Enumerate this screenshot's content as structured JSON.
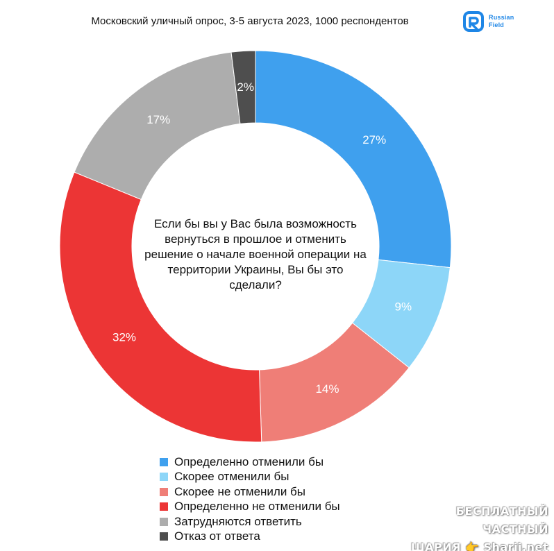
{
  "header": {
    "title": "Московский уличный опрос, 3-5 августа 2023, 1000 респондентов"
  },
  "logo": {
    "text_line1": "Russian",
    "text_line2": "Field",
    "color": "#1e86e6"
  },
  "chart_data": {
    "type": "pie",
    "center_text": "Если бы вы у Вас была возможность вернуться в прошлое и отменить решение о начале военной операции на территории Украины, Вы бы это сделали?",
    "categories": [
      "Определенно отменили бы",
      "Скорее отменили бы",
      "Скорее не отменили бы",
      "Определенно не отменили бы",
      "Затрудняются ответить",
      "Отказ от ответа"
    ],
    "values": [
      27,
      9,
      14,
      32,
      17,
      2
    ],
    "labels": [
      "27%",
      "9%",
      "14%",
      "32%",
      "17%",
      "2%"
    ],
    "colors": [
      "#3fa0ee",
      "#8dd6f8",
      "#ef7e77",
      "#ec3535",
      "#adadad",
      "#4e4e4e"
    ],
    "legend_position": "bottom"
  },
  "watermark": {
    "line1": "БЕСПЛАТНЫЙ ЧАСТНЫЙ",
    "line2": "ШАРИЯ 👉 Sharij.net"
  }
}
